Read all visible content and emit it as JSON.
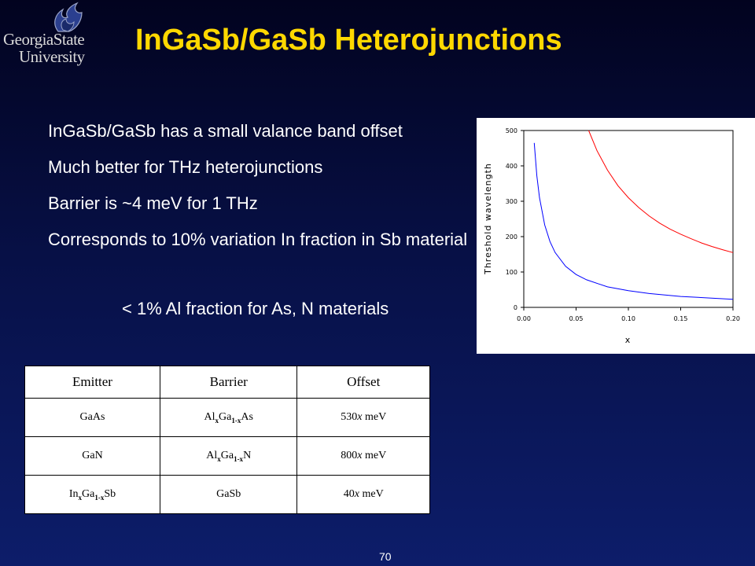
{
  "logo": {
    "line1": "GeorgiaState",
    "line2": "University"
  },
  "title": "InGaSb/GaSb Heterojunctions",
  "bullets": [
    "InGaSb/GaSb has a small valance band offset",
    "Much better for THz heterojunctions",
    "Barrier is ~4 meV for 1 THz",
    "Corresponds to 10% variation In fraction in Sb material"
  ],
  "sub_bullet": "< 1% Al fraction for As, N materials",
  "chart_data": {
    "type": "line",
    "title": "",
    "xlabel": "x",
    "ylabel": "Threshold wavelength",
    "xlim": [
      0,
      0.2
    ],
    "ylim": [
      0,
      500
    ],
    "xticks": [
      0,
      0.05,
      0.1,
      0.15,
      0.2
    ],
    "xtick_labels": [
      "0.00",
      "0.05",
      "0.10",
      "0.15",
      "0.20"
    ],
    "yticks": [
      0,
      100,
      200,
      300,
      400,
      500
    ],
    "ytick_labels": [
      "0",
      "100",
      "200",
      "300",
      "400",
      "500"
    ],
    "grid": false,
    "series": [
      {
        "color": "#0000ff",
        "x": [
          0.01,
          0.0125,
          0.015,
          0.02,
          0.025,
          0.03,
          0.04,
          0.05,
          0.06,
          0.08,
          0.1,
          0.12,
          0.15,
          0.2
        ],
        "y": [
          465,
          372,
          310,
          233,
          186,
          155,
          116,
          93,
          78,
          58,
          47,
          39,
          31,
          23
        ]
      },
      {
        "color": "#ff0000",
        "x": [
          0.062,
          0.07,
          0.08,
          0.09,
          0.1,
          0.11,
          0.12,
          0.13,
          0.14,
          0.15,
          0.16,
          0.17,
          0.18,
          0.19,
          0.2
        ],
        "y": [
          500,
          443,
          388,
          344,
          310,
          282,
          258,
          238,
          221,
          207,
          194,
          182,
          172,
          163,
          155
        ]
      }
    ]
  },
  "table": {
    "headers": [
      "Emitter",
      "Barrier",
      "Offset"
    ],
    "rows": [
      {
        "emitter": {
          "a": "GaAs",
          "b": "",
          "c": "",
          "d": "",
          "e": ""
        },
        "barrier": {
          "a": "Al",
          "b": "x",
          "c": "Ga",
          "d": "1-x",
          "e": "As"
        },
        "offset": {
          "coef": "530",
          "var": "x",
          "unit": " meV"
        }
      },
      {
        "emitter": {
          "a": "GaN",
          "b": "",
          "c": "",
          "d": "",
          "e": ""
        },
        "barrier": {
          "a": "Al",
          "b": "x",
          "c": "Ga",
          "d": "1-x",
          "e": "N"
        },
        "offset": {
          "coef": "800",
          "var": "x",
          "unit": " meV"
        }
      },
      {
        "emitter": {
          "a": "In",
          "b": "x",
          "c": "Ga",
          "d": "1-x",
          "e": "Sb"
        },
        "barrier": {
          "a": "GaSb",
          "b": "",
          "c": "",
          "d": "",
          "e": ""
        },
        "offset": {
          "coef": "40",
          "var": "x",
          "unit": " meV"
        }
      }
    ]
  },
  "page_number": "70"
}
